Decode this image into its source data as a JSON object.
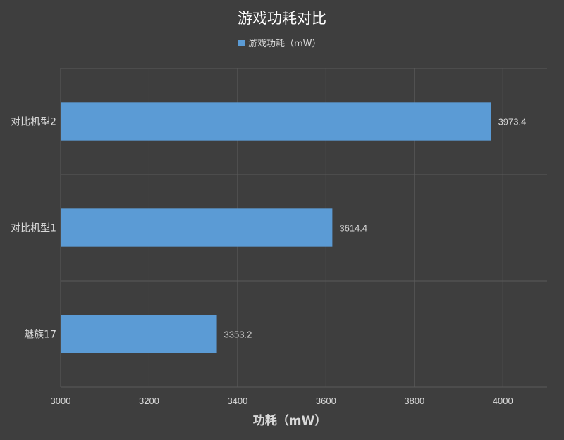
{
  "chart_data": {
    "type": "bar",
    "orientation": "horizontal",
    "title": "游戏功耗对比",
    "xlabel": "功耗（mW）",
    "ylabel": "",
    "categories": [
      "对比机型2",
      "对比机型1",
      "魅族17"
    ],
    "series": [
      {
        "name": "游戏功耗（mW）",
        "values": [
          3973.4,
          3614.4,
          3353.2
        ]
      }
    ],
    "data_labels": [
      "3973.4",
      "3614.4",
      "3353.2"
    ],
    "xlim": [
      3000,
      4100
    ],
    "xticks": [
      3000,
      3200,
      3400,
      3600,
      3800,
      4000
    ],
    "grid": true,
    "legend": "top-center",
    "colors": {
      "background": "#3e3e3e",
      "bar": "#5b9bd5",
      "grid": "#5a5a5a",
      "text": "#d9d9d9",
      "title": "#ffffff"
    }
  }
}
